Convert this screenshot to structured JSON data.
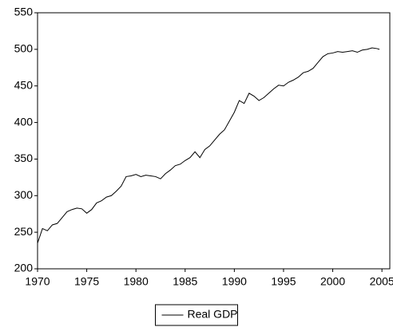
{
  "chart_data": {
    "type": "line",
    "x": [
      1970,
      1970.5,
      1971,
      1971.5,
      1972,
      1972.5,
      1973,
      1973.5,
      1974,
      1974.5,
      1975,
      1975.5,
      1976,
      1976.5,
      1977,
      1977.5,
      1978,
      1978.5,
      1979,
      1979.5,
      1980,
      1980.5,
      1981,
      1981.5,
      1982,
      1982.5,
      1983,
      1983.5,
      1984,
      1984.5,
      1985,
      1985.5,
      1986,
      1986.5,
      1987,
      1987.5,
      1988,
      1988.5,
      1989,
      1989.5,
      1990,
      1990.5,
      1991,
      1991.5,
      1992,
      1992.5,
      1993,
      1993.5,
      1994,
      1994.5,
      1995,
      1995.5,
      1996,
      1996.5,
      1997,
      1997.5,
      1998,
      1998.5,
      1999,
      1999.5,
      2000,
      2000.5,
      2001,
      2001.5,
      2002,
      2002.5,
      2003,
      2003.5,
      2004,
      2004.5,
      2004.75
    ],
    "series": [
      {
        "name": "Real GDP",
        "color": "#000000",
        "values": [
          235,
          255,
          252,
          260,
          262,
          270,
          278,
          281,
          283,
          282,
          276,
          281,
          290,
          293,
          298,
          300,
          306,
          313,
          326,
          327,
          329,
          326,
          328,
          327,
          326,
          323,
          330,
          335,
          341,
          343,
          348,
          352,
          360,
          352,
          363,
          368,
          376,
          384,
          390,
          402,
          414,
          430,
          426,
          440,
          436,
          430,
          434,
          440,
          446,
          451,
          450,
          455,
          458,
          462,
          468,
          470,
          474,
          482,
          490,
          494,
          495,
          497,
          496,
          497,
          498,
          496,
          499,
          500,
          502,
          501,
          500
        ]
      }
    ],
    "xlim": [
      1970,
      2005.8
    ],
    "xticks": [
      1970,
      1975,
      1980,
      1985,
      1990,
      1995,
      2000,
      2005
    ],
    "ylim": [
      200,
      550
    ],
    "yticks": [
      200,
      250,
      300,
      350,
      400,
      450,
      500,
      550
    ],
    "legend": "bottom"
  }
}
